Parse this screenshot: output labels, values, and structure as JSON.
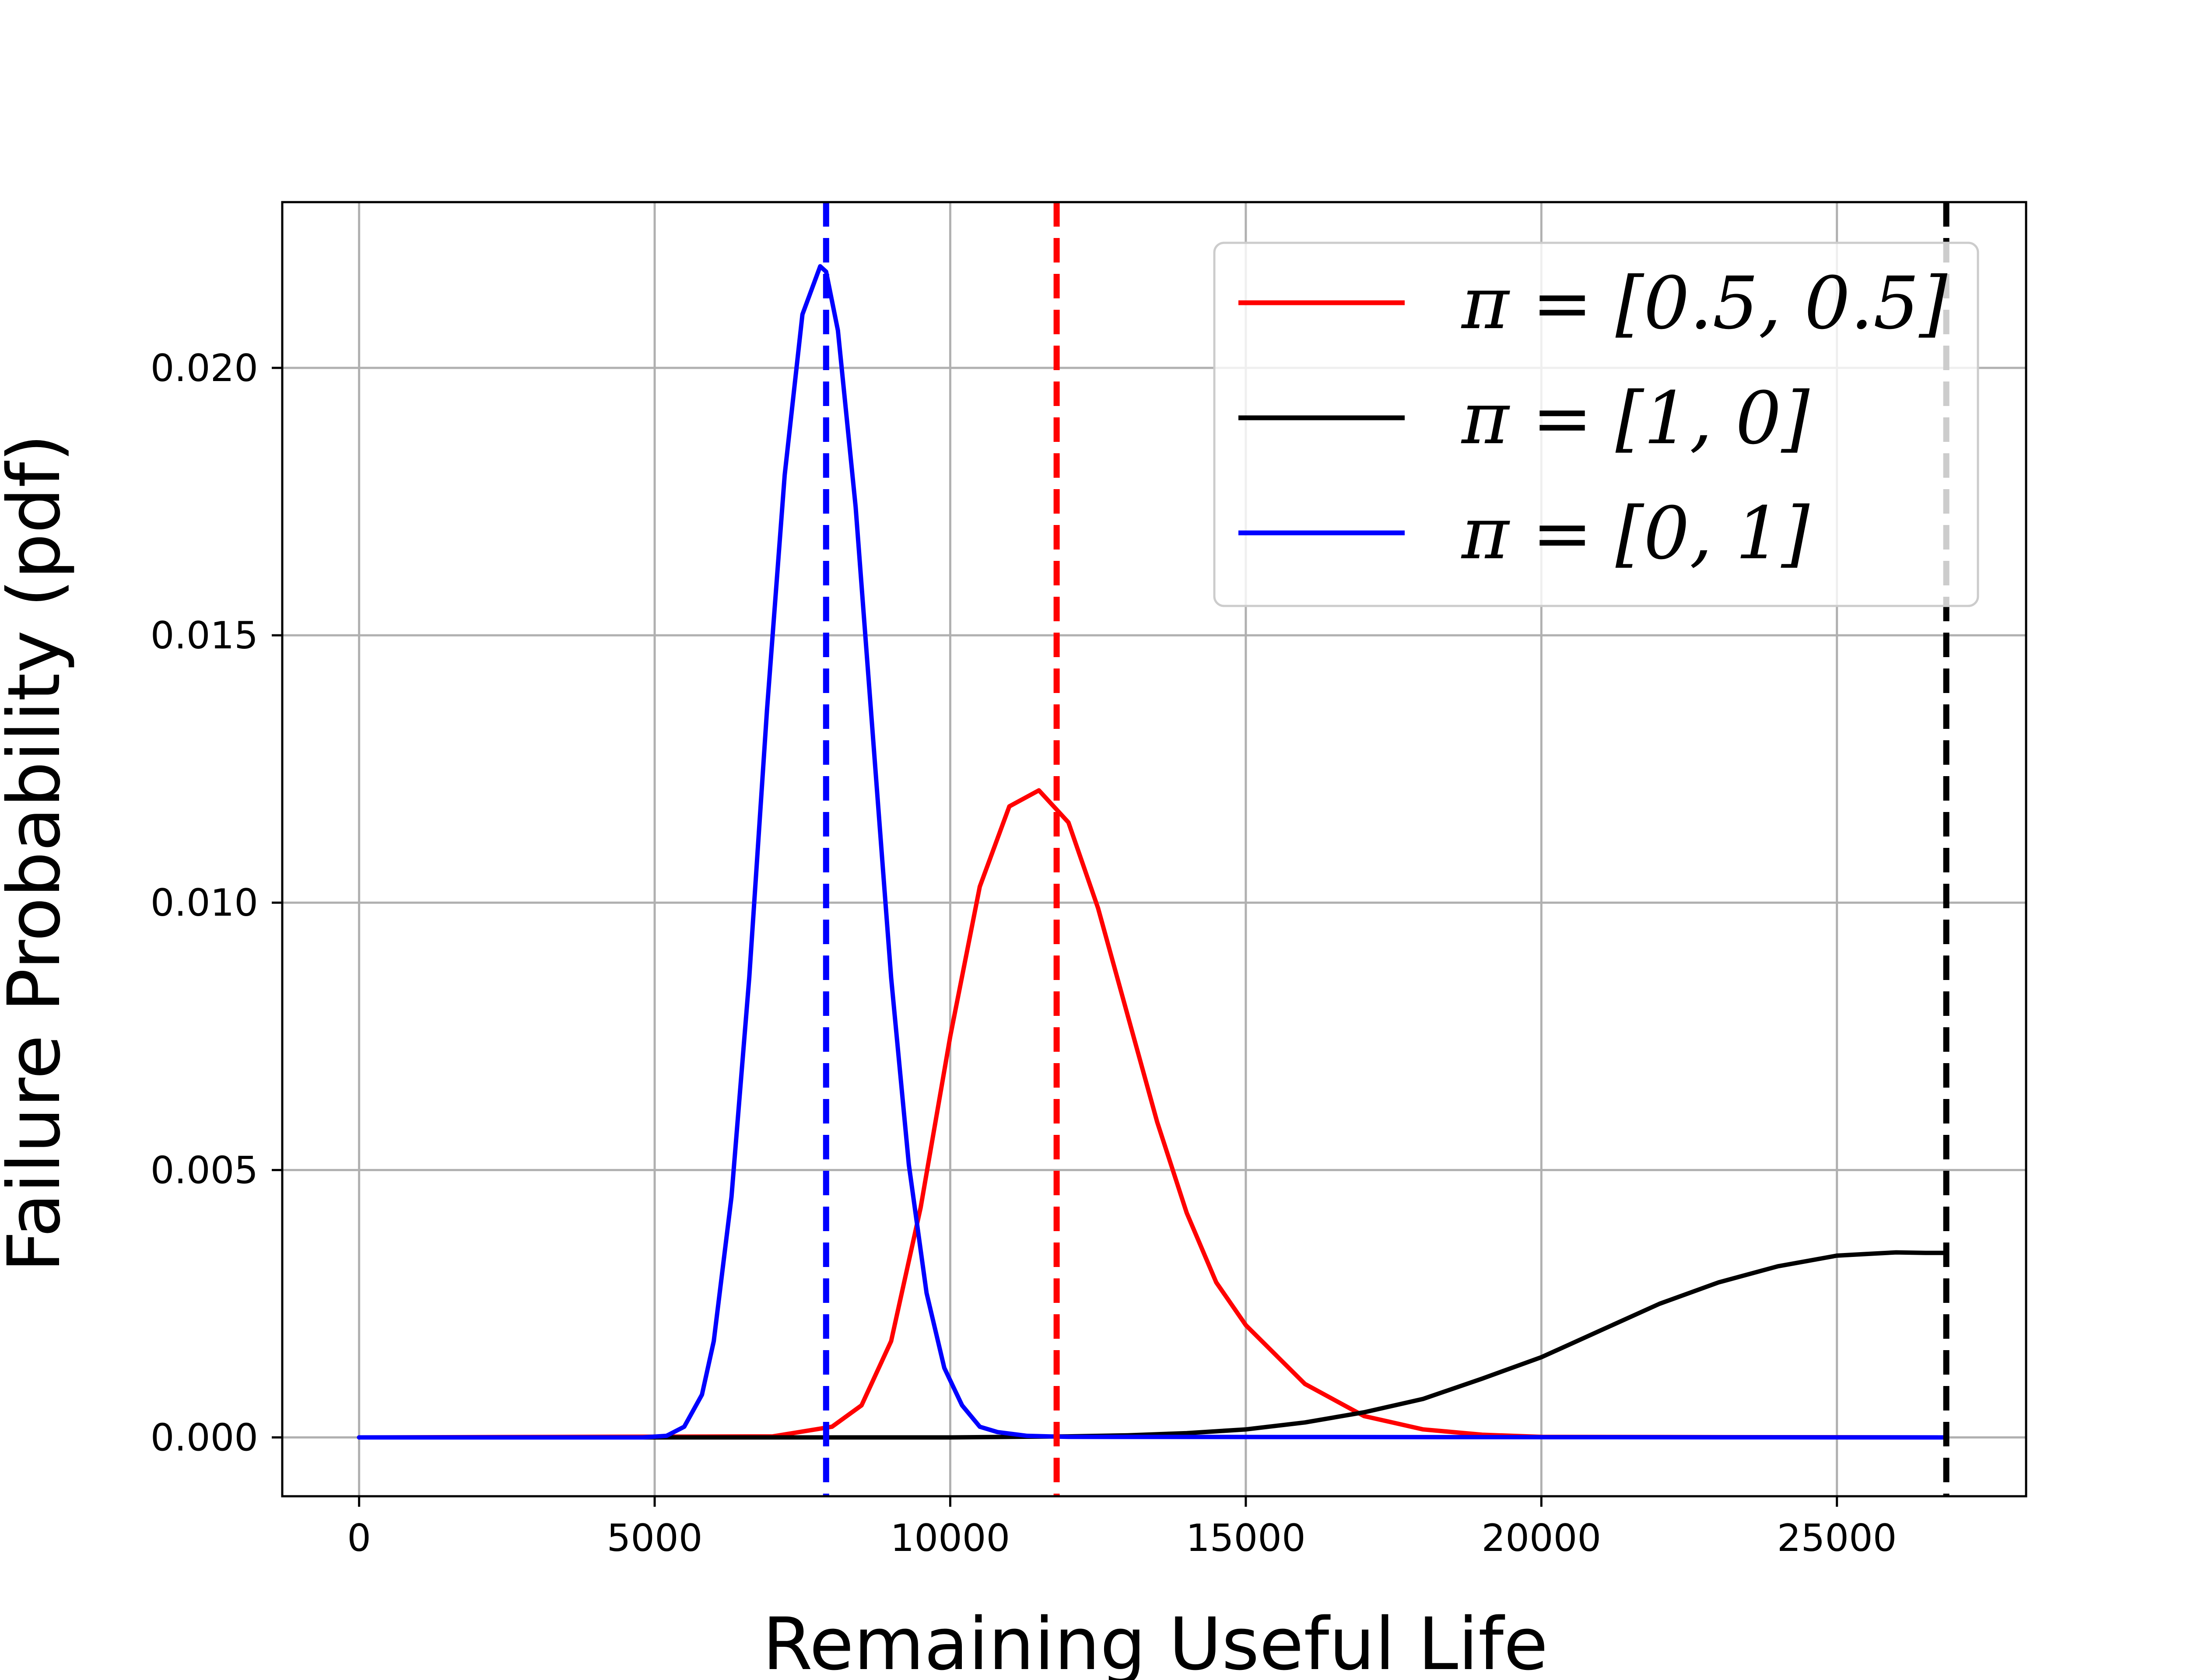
{
  "chart_data": {
    "type": "line",
    "title": "",
    "xlabel": "Remaining Useful Life",
    "ylabel": "Failure Probability (pdf)",
    "xlim": [
      -1300,
      28200
    ],
    "ylim": [
      -0.0011,
      0.0231
    ],
    "xticks": [
      0,
      5000,
      10000,
      15000,
      20000,
      25000
    ],
    "xtick_labels": [
      "0",
      "5000",
      "10000",
      "15000",
      "20000",
      "25000"
    ],
    "yticks": [
      0.0,
      0.005,
      0.01,
      0.015,
      0.02
    ],
    "ytick_labels": [
      "0.000",
      "0.005",
      "0.010",
      "0.015",
      "0.020"
    ],
    "grid": true,
    "legend_position": "top-right",
    "series": [
      {
        "name": "π = [0.5, 0.5]",
        "label": "π = [0.5, 0.5]",
        "color": "#ff0000",
        "x": [
          0,
          7000,
          8000,
          8500,
          9000,
          9500,
          10000,
          10500,
          11000,
          11500,
          12000,
          12500,
          13000,
          13500,
          14000,
          14500,
          15000,
          16000,
          17000,
          18000,
          19000,
          20000,
          26800
        ],
        "y": [
          0,
          2e-05,
          0.0002,
          0.0006,
          0.0018,
          0.0043,
          0.0075,
          0.0103,
          0.0118,
          0.0121,
          0.0115,
          0.0099,
          0.0079,
          0.0059,
          0.0042,
          0.0029,
          0.0021,
          0.001,
          0.0004,
          0.00015,
          5e-05,
          1e-05,
          0
        ]
      },
      {
        "name": "π = [1, 0]",
        "label": "π = [1, 0]",
        "color": "#000000",
        "x": [
          0,
          10000,
          12000,
          13000,
          14000,
          15000,
          16000,
          17000,
          18000,
          19000,
          20000,
          21000,
          22000,
          23000,
          24000,
          25000,
          25500,
          26000,
          26500,
          26800
        ],
        "y": [
          0,
          0,
          2e-05,
          4e-05,
          8e-05,
          0.00015,
          0.00028,
          0.00047,
          0.00072,
          0.0011,
          0.0015,
          0.002,
          0.0025,
          0.0029,
          0.0032,
          0.0034,
          0.00343,
          0.00346,
          0.00345,
          0.00345
        ]
      },
      {
        "name": "π = [0, 1]",
        "label": "π = [0, 1]",
        "color": "#0000ff",
        "x": [
          0,
          4800,
          5200,
          5500,
          5800,
          6000,
          6300,
          6600,
          6900,
          7200,
          7500,
          7800,
          7900,
          8100,
          8400,
          8700,
          9000,
          9300,
          9600,
          9900,
          10200,
          10500,
          10800,
          11300,
          12000,
          26800
        ],
        "y": [
          0,
          0,
          3e-05,
          0.0002,
          0.0008,
          0.0018,
          0.0045,
          0.0086,
          0.0136,
          0.018,
          0.021,
          0.0219,
          0.0218,
          0.0207,
          0.0174,
          0.013,
          0.0086,
          0.0051,
          0.0027,
          0.0013,
          0.0006,
          0.0002,
          0.0001,
          3e-05,
          1e-05,
          0
        ]
      }
    ],
    "vertical_lines": [
      {
        "name": "blue-mean-line",
        "x": 7900,
        "color": "#0000ff"
      },
      {
        "name": "red-mean-line",
        "x": 11800,
        "color": "#ff0000"
      },
      {
        "name": "black-mean-line",
        "x": 26850,
        "color": "#000000"
      }
    ]
  }
}
